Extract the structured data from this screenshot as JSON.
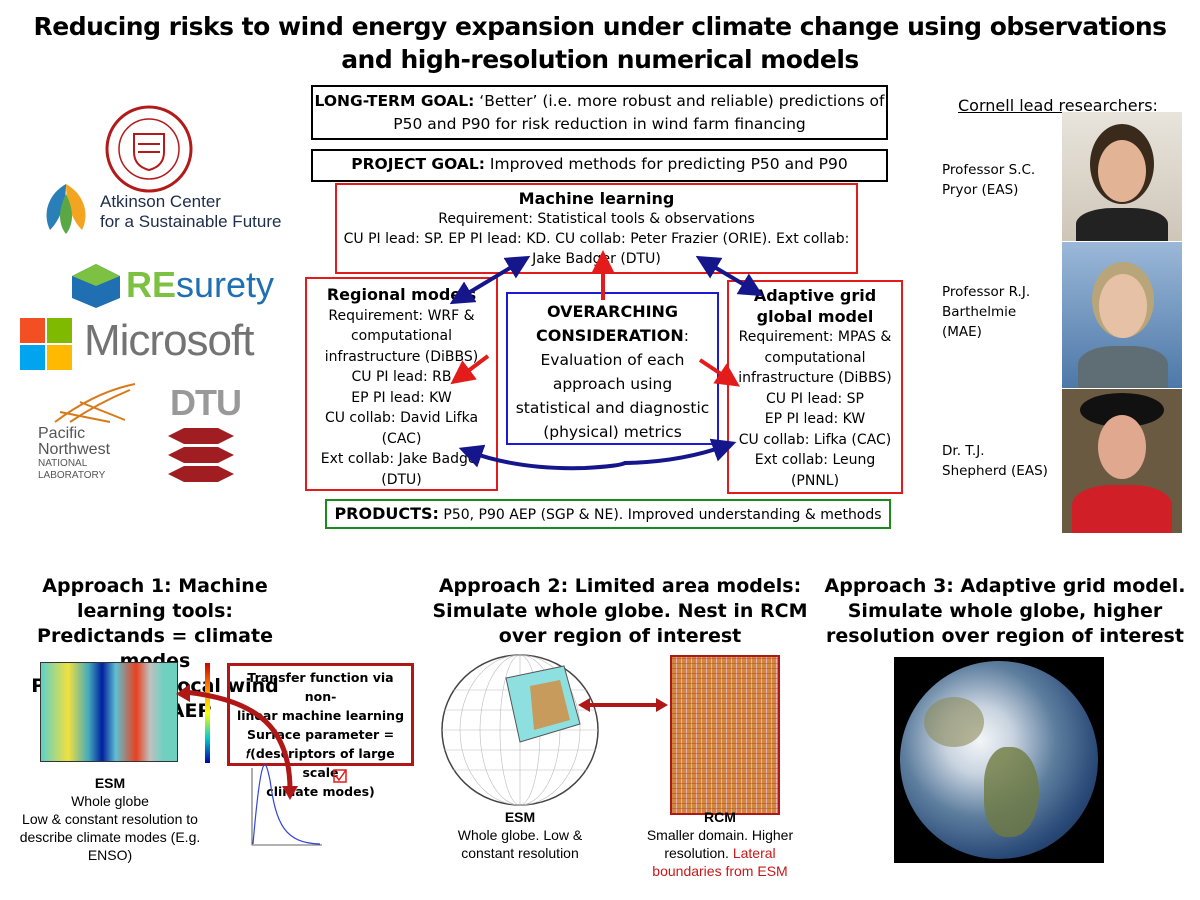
{
  "title": "Reducing risks to wind energy expansion under climate change using observations and high-resolution numerical models",
  "long_term": {
    "label": "LONG-TERM GOAL:",
    "text": " ‘Better’ (i.e. more robust and reliable) predictions of P50 and P90 for risk reduction in wind farm financing"
  },
  "project": {
    "label": "PROJECT GOAL:",
    "text": " Improved methods for predicting P50 and P90"
  },
  "ml": {
    "heading": "Machine learning",
    "lines": [
      "Requirement: Statistical tools & observations",
      "CU PI lead: SP. EP PI lead: KD. CU collab: Peter Frazier (ORIE). Ext collab:",
      "Jake Badger (DTU)"
    ]
  },
  "regional": {
    "heading": "Regional models",
    "lines": [
      "Requirement: WRF &",
      "computational",
      "infrastructure (DiBBS)",
      "CU PI lead: RB",
      "EP PI lead: KW",
      "CU collab: David Lifka",
      "(CAC)",
      "Ext collab: Jake Badger",
      "(DTU)"
    ]
  },
  "center": {
    "heading1": "OVERARCHING",
    "heading2": "CONSIDERATION",
    "colon": ":",
    "lines": [
      "Evaluation of each",
      "approach using",
      "statistical and diagnostic",
      "(physical) metrics"
    ]
  },
  "adaptive": {
    "heading1": "Adaptive grid",
    "heading2": "global model",
    "lines": [
      "Requirement: MPAS &",
      "computational",
      "infrastructure (DiBBS)",
      "CU PI lead: SP",
      "EP PI lead: KW",
      "CU collab: Lifka (CAC)",
      "Ext collab: Leung",
      "(PNNL)"
    ]
  },
  "products": {
    "label": "PRODUCTS:",
    "text": " P50, P90 AEP (SGP & NE). Improved understanding & methods"
  },
  "researchers": {
    "heading": "Cornell lead researchers:",
    "people": [
      {
        "name1": "Professor S.C.",
        "name2": "Pryor (EAS)"
      },
      {
        "name1": "Professor R.J.",
        "name2": "Barthelmie",
        "name3": "(MAE)"
      },
      {
        "name1": "Dr. T.J.",
        "name2": "Shepherd (EAS)"
      }
    ]
  },
  "logos": {
    "cornell": "CORNELL UNIVERSITY FOUNDED A.D. 1865",
    "atkinson1": "Atkinson Center",
    "atkinson2": "for a Sustainable Future",
    "resurety_re": "RE",
    "resurety_rest": "surety",
    "microsoft": "Microsoft",
    "pnnl1": "Pacific",
    "pnnl2": "Northwest",
    "pnnl3": "NATIONAL",
    "pnnl4": "LABORATORY",
    "dtu": "DTU"
  },
  "approach1": {
    "lines": [
      "Approach 1:  Machine learning tools:",
      "Predictands = climate modes",
      "Predictors = local wind speed/AEP"
    ],
    "callout": [
      "Transfer function via non-",
      "linear machine learning",
      "Surface parameter =",
      "𝑓(descriptors of large scale",
      "climate modes)"
    ],
    "cap_title": "ESM",
    "cap": [
      "Whole globe",
      "Low & constant resolution to",
      "describe climate modes (E.g.",
      "ENSO)"
    ]
  },
  "approach2": {
    "lines": [
      "Approach 2:  Limited area models:",
      "Simulate whole globe. Nest in RCM",
      "over region of interest"
    ],
    "esm_title": "ESM",
    "esm": [
      "Whole globe. Low &",
      "constant resolution"
    ],
    "rcm_title": "RCM",
    "rcm": [
      "Smaller domain. Higher",
      "resolution. "
    ],
    "rcm_red": [
      "Lateral",
      "boundaries from ESM"
    ]
  },
  "approach3": {
    "lines": [
      "Approach 3:  Adaptive grid model.",
      "Simulate whole globe, higher",
      "resolution over region of interest"
    ]
  },
  "colors": {
    "red": "#e31b1b",
    "blue": "#1a1ad8",
    "green": "#1a8a1a",
    "darkred": "#b01818",
    "navy": "#15158c"
  }
}
